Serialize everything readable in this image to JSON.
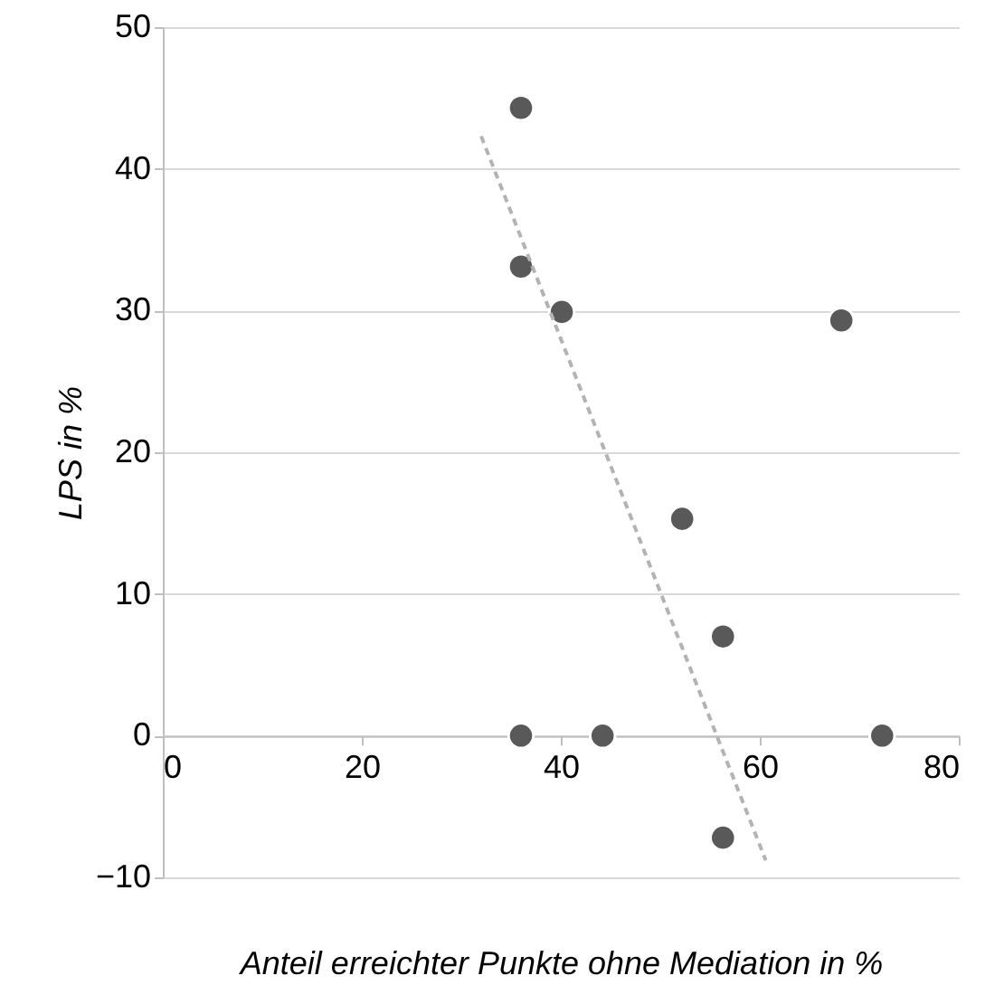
{
  "chart_data": {
    "type": "scatter",
    "xlabel": "Anteil erreichter Punkte ohne Mediation in %",
    "ylabel": "LPS in %",
    "xlim": [
      0,
      80
    ],
    "xticks": [
      0,
      20,
      40,
      60,
      80
    ],
    "ylim": [
      -10,
      50
    ],
    "yticks": [
      -10,
      0,
      10,
      20,
      30,
      40,
      50
    ],
    "grid": "y",
    "series": [
      {
        "marker": "circle",
        "color": "#595959",
        "x": [
          36,
          36,
          40.1,
          68.2,
          52.2,
          56.3,
          36,
          44.2,
          72.3,
          56.3
        ],
        "values": [
          44.3,
          33.1,
          29.9,
          29.3,
          15.3,
          7.0,
          0,
          0,
          0,
          -7.2
        ]
      },
      {
        "type": "line",
        "color": "#b3b3b3",
        "line_style": "dashed",
        "marker": "none",
        "x": [
          32,
          60.6
        ],
        "values": [
          42.3,
          -8.8
        ]
      }
    ]
  }
}
